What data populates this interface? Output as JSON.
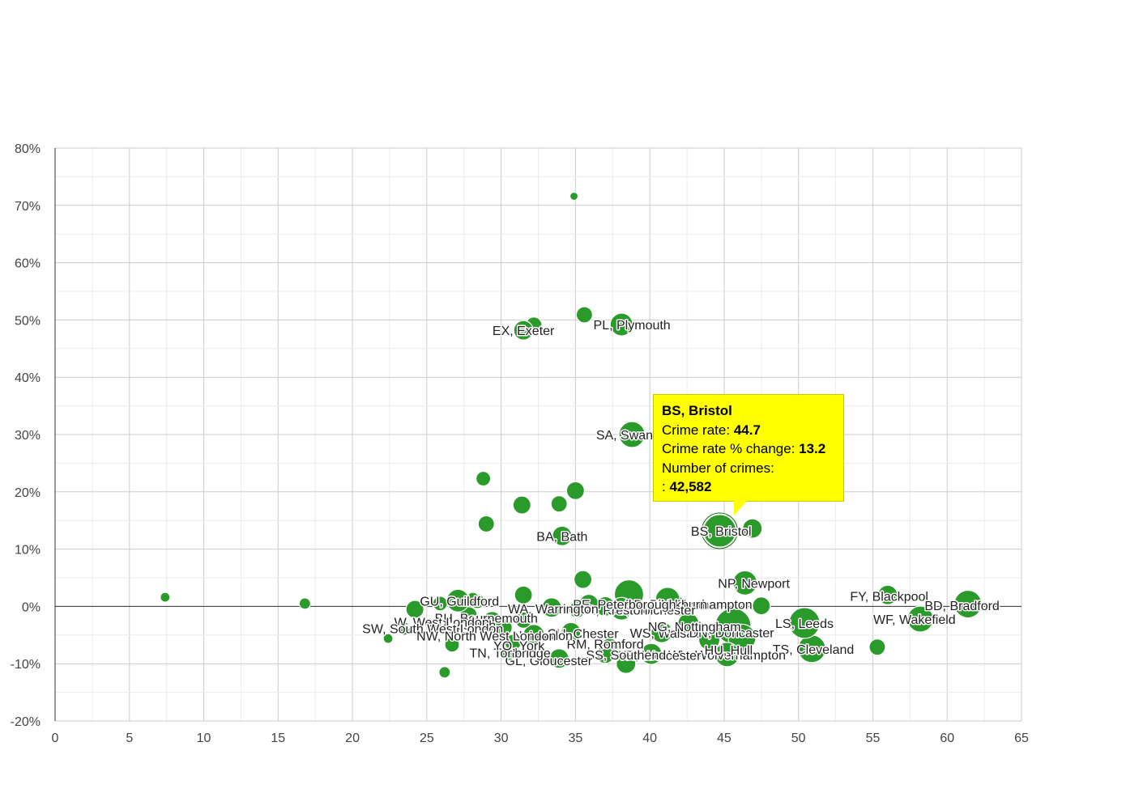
{
  "chart_data": {
    "type": "scatter",
    "title": "",
    "xlabel": "",
    "ylabel": "",
    "xlim": [
      0,
      65
    ],
    "ylim": [
      -20,
      80
    ],
    "x_ticks": [
      "0",
      "5",
      "10",
      "15",
      "20",
      "25",
      "30",
      "35",
      "40",
      "45",
      "50",
      "55",
      "60",
      "65"
    ],
    "y_ticks": [
      "-20%",
      "-10%",
      "0%",
      "10%",
      "20%",
      "30%",
      "40%",
      "50%",
      "60%",
      "70%",
      "80%"
    ],
    "grid": true,
    "color": "#2a9a2a",
    "points": [
      {
        "x": 7.4,
        "y": 1.6,
        "r": 6
      },
      {
        "x": 16.8,
        "y": 0.5,
        "r": 7
      },
      {
        "x": 22.4,
        "y": -5.6,
        "r": 6
      },
      {
        "x": 26.2,
        "y": -11.5,
        "r": 7
      },
      {
        "x": 34.9,
        "y": 71.6,
        "r": 5
      },
      {
        "x": 35.6,
        "y": 50.9,
        "r": 10
      },
      {
        "x": 32.2,
        "y": 49.1,
        "r": 10
      },
      {
        "x": 31.5,
        "y": 48.2,
        "r": 12,
        "label": "EX, Exeter"
      },
      {
        "x": 38.1,
        "y": 49.2,
        "r": 14,
        "label": "PL, Plymouth"
      },
      {
        "x": 38.8,
        "y": 30.0,
        "r": 16,
        "label": "SA, Swan"
      },
      {
        "x": 28.8,
        "y": 22.3,
        "r": 9
      },
      {
        "x": 35.0,
        "y": 20.2,
        "r": 11
      },
      {
        "x": 31.4,
        "y": 17.7,
        "r": 11
      },
      {
        "x": 33.9,
        "y": 17.9,
        "r": 10
      },
      {
        "x": 29.0,
        "y": 14.4,
        "r": 10
      },
      {
        "x": 34.1,
        "y": 12.3,
        "r": 12,
        "label": "BA, Bath"
      },
      {
        "x": 44.7,
        "y": 13.2,
        "r": 20,
        "label": "BS, Bristol",
        "highlight": true
      },
      {
        "x": 46.9,
        "y": 13.6,
        "r": 12
      },
      {
        "x": 35.5,
        "y": 4.7,
        "r": 11
      },
      {
        "x": 46.4,
        "y": 4.1,
        "r": 15,
        "label": "NP, Newport"
      },
      {
        "x": 56.0,
        "y": 2.0,
        "r": 12,
        "label": "FY, Blackpool"
      },
      {
        "x": 61.4,
        "y": 0.4,
        "r": 17,
        "label": "BD, Bradford"
      },
      {
        "x": 58.2,
        "y": -2.2,
        "r": 16,
        "label": "WF, Wakefield"
      },
      {
        "x": 55.3,
        "y": -7.1,
        "r": 10
      },
      {
        "x": 50.9,
        "y": -7.4,
        "r": 17,
        "label": "TS, Cleveland"
      },
      {
        "x": 50.4,
        "y": -2.9,
        "r": 19,
        "label": "LS, Leeds"
      },
      {
        "x": 47.5,
        "y": 0.1,
        "r": 11
      },
      {
        "x": 45.6,
        "y": -3.4,
        "r": 22
      },
      {
        "x": 46.2,
        "y": -5.5,
        "r": 17
      },
      {
        "x": 45.2,
        "y": -8.4,
        "r": 15,
        "label": "WV, Wolverhampton"
      },
      {
        "x": 44.0,
        "y": -5.8,
        "r": 13,
        "label": "DN, Doncaster"
      },
      {
        "x": 42.6,
        "y": -3.0,
        "r": 13,
        "label": "NG, Nottingham"
      },
      {
        "x": 41.9,
        "y": 0.0,
        "r": 12
      },
      {
        "x": 41.2,
        "y": 1.2,
        "r": 15,
        "label": "BB, Blackburn"
      },
      {
        "x": 40.8,
        "y": -4.5,
        "r": 13,
        "label": "WS, Walsall"
      },
      {
        "x": 40.1,
        "y": -8.3,
        "r": 13,
        "label": "WR, Worcester"
      },
      {
        "x": 38.6,
        "y": 2.1,
        "r": 18
      },
      {
        "x": 38.4,
        "y": -10.0,
        "r": 12,
        "label": "SS, Southend"
      },
      {
        "x": 38.1,
        "y": -0.4,
        "r": 14,
        "label": "CO, Colchester"
      },
      {
        "x": 37.3,
        "y": -7.1,
        "r": 11,
        "label": "RM, Romford"
      },
      {
        "x": 37.0,
        "y": 0.0,
        "r": 12,
        "label": "PR, Preston"
      },
      {
        "x": 37.0,
        "y": -8.4,
        "r": 11
      },
      {
        "x": 35.9,
        "y": 0.4,
        "r": 12,
        "label": "PE, Peterborough"
      },
      {
        "x": 35.1,
        "y": -0.6,
        "r": 10
      },
      {
        "x": 34.7,
        "y": -4.5,
        "r": 12,
        "label": "CH, Chester"
      },
      {
        "x": 33.9,
        "y": -9.1,
        "r": 12,
        "label": "GL, Gloucester"
      },
      {
        "x": 33.4,
        "y": -0.2,
        "r": 12,
        "label": "WA, Warrington"
      },
      {
        "x": 32.2,
        "y": -5.0,
        "r": 13,
        "label": "N, London"
      },
      {
        "x": 31.5,
        "y": 2.0,
        "r": 11
      },
      {
        "x": 31.5,
        "y": -2.4,
        "r": 10
      },
      {
        "x": 30.6,
        "y": -7.8,
        "r": 12,
        "label": "TN, Tonbridge"
      },
      {
        "x": 30.2,
        "y": -3.7,
        "r": 10
      },
      {
        "x": 29.4,
        "y": -2.6,
        "r": 12,
        "label": "BH, Bournemouth"
      },
      {
        "x": 28.4,
        "y": 0.9,
        "r": 9
      },
      {
        "x": 28.1,
        "y": 1.3,
        "r": 8
      },
      {
        "x": 27.8,
        "y": -1.6,
        "r": 11,
        "label": "IP, Ipswich"
      },
      {
        "x": 27.1,
        "y": 1.0,
        "r": 14,
        "label": "GU, Guildford"
      },
      {
        "x": 26.7,
        "y": -6.7,
        "r": 9,
        "label": "NW, North West London"
      },
      {
        "x": 25.9,
        "y": 0.5,
        "r": 9
      },
      {
        "x": 24.2,
        "y": -0.5,
        "r": 11,
        "label": "W, West London"
      },
      {
        "x": 23.5,
        "y": -3.9,
        "r": 8,
        "label": "SW, South West London"
      },
      {
        "x": 30.8,
        "y": -6.3,
        "r": 10,
        "label": "YO, York"
      }
    ],
    "labels": [
      {
        "text": "EX, Exeter",
        "x": 31.5,
        "y": 48.2
      },
      {
        "text": "PL, Plymouth",
        "x": 38.8,
        "y": 49.2
      },
      {
        "text": "SA, Swan",
        "x": 38.3,
        "y": 30.0
      },
      {
        "text": "BA, Bath",
        "x": 34.1,
        "y": 12.3
      },
      {
        "text": "BS, Bristol",
        "x": 44.8,
        "y": 13.2
      },
      {
        "text": "NP, Newport",
        "x": 47.0,
        "y": 4.1
      },
      {
        "text": "FY, Blackpool",
        "x": 56.1,
        "y": 1.8
      },
      {
        "text": "BD, Bradford",
        "x": 61.0,
        "y": 0.2
      },
      {
        "text": "WF, Wakefield",
        "x": 57.8,
        "y": -2.2
      },
      {
        "text": "LS, Leeds",
        "x": 50.4,
        "y": -2.9
      },
      {
        "text": "TS, Cleveland",
        "x": 51.0,
        "y": -7.4
      },
      {
        "text": "NN, Northampton",
        "x": 43.5,
        "y": 0.4
      },
      {
        "text": "BB, Blackburn",
        "x": 41.1,
        "y": 0.4
      },
      {
        "text": "CO, Colchester",
        "x": 40.1,
        "y": -0.6
      },
      {
        "text": "PR, Preston",
        "x": 37.5,
        "y": -0.6
      },
      {
        "text": "PE, Peterborough",
        "x": 38.3,
        "y": 0.4
      },
      {
        "text": "WA, Warrington",
        "x": 33.5,
        "y": -0.4
      },
      {
        "text": "WS, Walsall",
        "x": 41.0,
        "y": -4.6
      },
      {
        "text": "DN, Doncaster",
        "x": 45.5,
        "y": -4.5
      },
      {
        "text": "NG, Nottingham",
        "x": 43.0,
        "y": -3.5
      },
      {
        "text": "CH, Chester",
        "x": 35.5,
        "y": -4.7
      },
      {
        "text": "RM, Romford",
        "x": 37.0,
        "y": -6.5
      },
      {
        "text": "WV, Wolverhampton",
        "x": 45.2,
        "y": -8.4
      },
      {
        "text": "WR, Worcester",
        "x": 40.5,
        "y": -8.5
      },
      {
        "text": "SS, Southend",
        "x": 38.4,
        "y": -8.4
      },
      {
        "text": "HU, Hull",
        "x": 45.3,
        "y": -7.6
      },
      {
        "text": "GL, Gloucester",
        "x": 33.2,
        "y": -9.4
      },
      {
        "text": "TN, Tonbridge",
        "x": 30.6,
        "y": -8.1
      },
      {
        "text": "N, London",
        "x": 32.8,
        "y": -5.0
      },
      {
        "text": "YO, York",
        "x": 31.2,
        "y": -6.8
      },
      {
        "text": "GU, Guildford",
        "x": 27.2,
        "y": 1.0
      },
      {
        "text": "BH, Bournemouth",
        "x": 29.0,
        "y": -2.0
      },
      {
        "text": "IP, Ipswich",
        "x": 27.6,
        "y": -3.2
      },
      {
        "text": "W, West London",
        "x": 26.0,
        "y": -2.7
      },
      {
        "text": "SW, South West London",
        "x": 25.4,
        "y": -3.8
      },
      {
        "text": "NW, North West London",
        "x": 29.0,
        "y": -5.1
      }
    ]
  },
  "tooltip": {
    "title": "BS, Bristol",
    "rate_label": "Crime rate:",
    "rate_value": "44.7",
    "change_label": "Crime rate % change:",
    "change_value": "13.2",
    "count_label": "Number of crimes:",
    "count_prefix": ":",
    "count_value": "42,582",
    "color": "#ffff00"
  }
}
